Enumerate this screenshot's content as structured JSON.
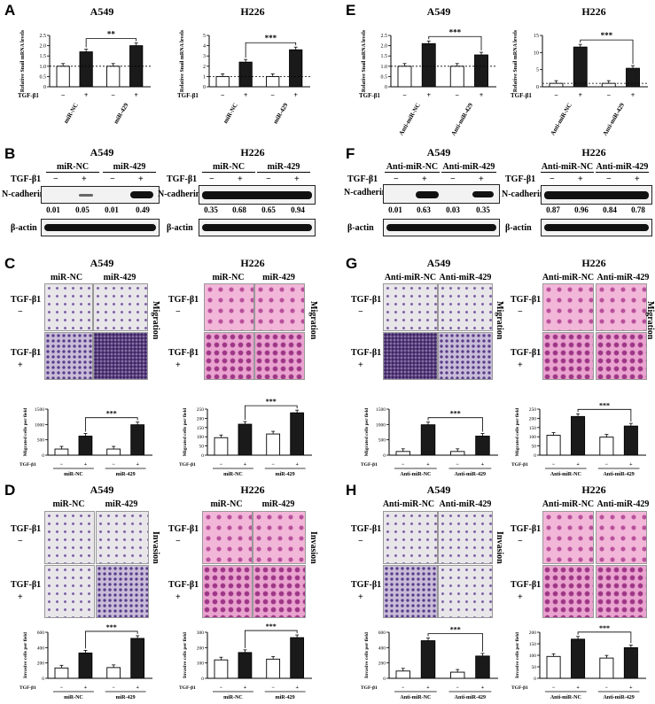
{
  "panels": {
    "A": {
      "label": "A",
      "left_title": "A549",
      "right_title": "H226",
      "treatment": "TGF-β1",
      "groups": [
        "miR-NC",
        "miR-429"
      ],
      "ylabel": "Relative Snail mRNA levels"
    },
    "B": {
      "label": "B",
      "left_title": "A549",
      "right_title": "H226",
      "treatment": "TGF-β1",
      "groups": [
        "miR-NC",
        "miR-429"
      ],
      "protein": "N-cadherin",
      "loading": "β-actin",
      "left_values": [
        "0.01",
        "0.05",
        "0.01",
        "0.49"
      ],
      "right_values": [
        "0.35",
        "0.68",
        "0.65",
        "0.94"
      ]
    },
    "C": {
      "label": "C",
      "left_title": "A549",
      "right_title": "H226",
      "treatment": "TGF-β1",
      "groups": [
        "miR-NC",
        "miR-429"
      ],
      "side": "Migration",
      "ylabel": "Migrated cells per field"
    },
    "D": {
      "label": "D",
      "left_title": "A549",
      "right_title": "H226",
      "treatment": "TGF-β1",
      "groups": [
        "miR-NC",
        "miR-429"
      ],
      "side": "Invasion",
      "ylabel": "Invasive cells per field"
    },
    "E": {
      "label": "E",
      "left_title": "A549",
      "right_title": "H226",
      "treatment": "TGF-β1",
      "groups": [
        "Anti-miR-NC",
        "Anti-miR-429"
      ],
      "ylabel": "Relative Snail mRNA levels"
    },
    "F": {
      "label": "F",
      "left_title": "A549",
      "right_title": "H226",
      "treatment": "TGF-β1",
      "groups": [
        "Anti-miR-NC",
        "Anti-miR-429"
      ],
      "protein": "N-cadherin",
      "loading": "β-actin",
      "left_values": [
        "0.01",
        "0.63",
        "0.03",
        "0.35"
      ],
      "right_values": [
        "0.87",
        "0.96",
        "0.84",
        "0.78"
      ]
    },
    "G": {
      "label": "G",
      "left_title": "A549",
      "right_title": "H226",
      "treatment": "TGF-β1",
      "groups": [
        "Anti-miR-NC",
        "Anti-miR-429"
      ],
      "side": "Migration",
      "ylabel": "Migrated cells per field"
    },
    "H": {
      "label": "H",
      "left_title": "A549",
      "right_title": "H226",
      "treatment": "TGF-β1",
      "groups": [
        "Anti-miR-NC",
        "Anti-miR-429"
      ],
      "side": "Invasion",
      "ylabel": "Invasive cells per field"
    }
  },
  "signs": {
    "minus": "−",
    "plus": "+"
  },
  "colors": {
    "bar_fill": "#1a1a1a",
    "bar_open": "#ffffff",
    "migration_a549": "#c9c2e0",
    "h226_stain": "#e39fd1"
  },
  "chart_data": [
    {
      "id": "A-A549",
      "type": "bar",
      "ylim": [
        0,
        2.5
      ],
      "yticks": [
        "0",
        "0.5",
        "1.0",
        "1.5",
        "2.0",
        "2.5"
      ],
      "values": [
        1,
        1.7,
        1.0,
        2.0
      ],
      "baseline": 1,
      "sig": "**",
      "sig_pair": [
        1,
        3
      ]
    },
    {
      "id": "A-H226",
      "type": "bar",
      "ylim": [
        0,
        5
      ],
      "yticks": [
        "0",
        "1",
        "2",
        "3",
        "4",
        "5"
      ],
      "values": [
        1,
        2.4,
        1.0,
        3.6
      ],
      "baseline": 1,
      "sig": "***",
      "sig_pair": [
        1,
        3
      ]
    },
    {
      "id": "E-A549",
      "type": "bar",
      "ylim": [
        0,
        2.5
      ],
      "yticks": [
        "0",
        "0.5",
        "1.0",
        "1.5",
        "2.0",
        "2.5"
      ],
      "values": [
        1,
        2.1,
        1.0,
        1.55
      ],
      "baseline": 1,
      "sig": "***",
      "sig_pair": [
        1,
        3
      ]
    },
    {
      "id": "E-H226",
      "type": "bar",
      "ylim": [
        0,
        15
      ],
      "yticks": [
        "0",
        "5",
        "10",
        "15"
      ],
      "values": [
        1,
        11.6,
        1.0,
        5.4
      ],
      "baseline": 1,
      "sig": "***",
      "sig_pair": [
        1,
        3
      ]
    },
    {
      "id": "C-A549",
      "type": "bar",
      "ylim": [
        0,
        1500
      ],
      "yticks": [
        "0",
        "500",
        "1000",
        "1500"
      ],
      "values": [
        200,
        620,
        200,
        990
      ],
      "sig": "***",
      "sig_pair": [
        1,
        3
      ]
    },
    {
      "id": "C-H226",
      "type": "bar",
      "ylim": [
        0,
        250
      ],
      "yticks": [
        "0",
        "50",
        "100",
        "150",
        "200",
        "250"
      ],
      "values": [
        95,
        168,
        115,
        230
      ],
      "sig": "***",
      "sig_pair": [
        1,
        3
      ]
    },
    {
      "id": "G-A549",
      "type": "bar",
      "ylim": [
        0,
        1500
      ],
      "yticks": [
        "0",
        "500",
        "1000",
        "1500"
      ],
      "values": [
        120,
        990,
        120,
        620
      ],
      "sig": "***",
      "sig_pair": [
        1,
        3
      ]
    },
    {
      "id": "G-H226",
      "type": "bar",
      "ylim": [
        0,
        250
      ],
      "yticks": [
        "0",
        "50",
        "100",
        "150",
        "200",
        "250"
      ],
      "values": [
        108,
        210,
        98,
        158
      ],
      "sig": "***",
      "sig_pair": [
        1,
        3
      ]
    },
    {
      "id": "D-A549",
      "type": "bar",
      "ylim": [
        0,
        600
      ],
      "yticks": [
        "0",
        "200",
        "400",
        "600"
      ],
      "values": [
        135,
        330,
        140,
        520
      ],
      "sig": "***",
      "sig_pair": [
        1,
        3
      ]
    },
    {
      "id": "D-H226",
      "type": "bar",
      "ylim": [
        0,
        300
      ],
      "yticks": [
        "0",
        "100",
        "200",
        "300"
      ],
      "values": [
        120,
        168,
        125,
        265
      ],
      "sig": "***",
      "sig_pair": [
        1,
        3
      ]
    },
    {
      "id": "H-A549",
      "type": "bar",
      "ylim": [
        0,
        600
      ],
      "yticks": [
        "0",
        "200",
        "400",
        "600"
      ],
      "values": [
        95,
        490,
        80,
        290
      ],
      "sig": "***",
      "sig_pair": [
        1,
        3
      ]
    },
    {
      "id": "H-H226",
      "type": "bar",
      "ylim": [
        0,
        200
      ],
      "yticks": [
        "0",
        "50",
        "100",
        "150",
        "200"
      ],
      "values": [
        95,
        170,
        88,
        133
      ],
      "sig": "***",
      "sig_pair": [
        1,
        3
      ]
    }
  ]
}
